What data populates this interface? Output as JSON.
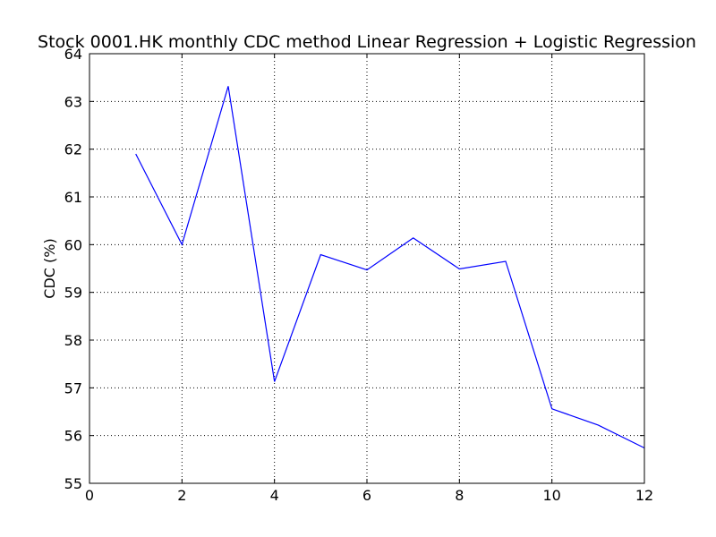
{
  "chart_data": {
    "type": "line",
    "title": "Stock 0001.HK monthly CDC method Linear Regression + Logistic Regression",
    "xlabel": "",
    "ylabel": "CDC (%)",
    "xlim": [
      0,
      12
    ],
    "ylim": [
      55,
      64
    ],
    "xticks": [
      0,
      2,
      4,
      6,
      8,
      10,
      12
    ],
    "yticks": [
      55,
      56,
      57,
      58,
      59,
      60,
      61,
      62,
      63,
      64
    ],
    "grid": true,
    "series": [
      {
        "color": "#0000ff",
        "x": [
          1,
          2,
          3,
          4,
          5,
          6,
          7,
          8,
          9,
          10,
          11,
          12
        ],
        "values": [
          61.9,
          60.0,
          63.32,
          57.13,
          59.79,
          59.47,
          60.14,
          59.49,
          59.65,
          56.56,
          56.22,
          55.74
        ]
      }
    ]
  }
}
